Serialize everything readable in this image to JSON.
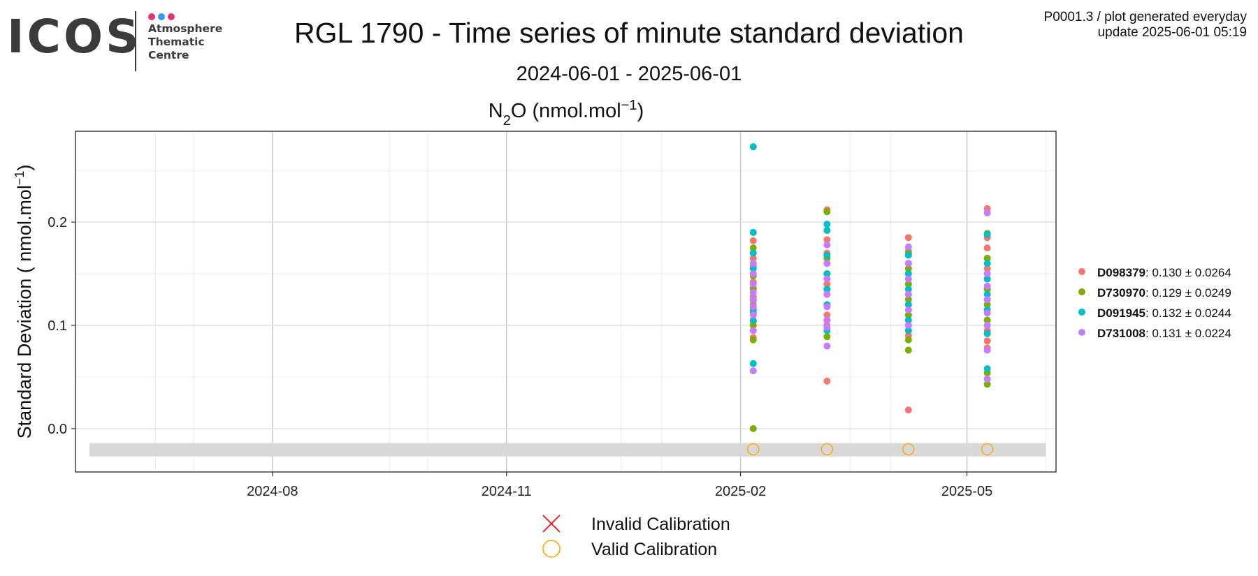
{
  "logo": {
    "text": "ICOS",
    "subtitle_lines": [
      "Atmosphere",
      "Thematic",
      "Centre"
    ],
    "dot_colors": [
      "#e8336f",
      "#2d9be5",
      "#e8336f"
    ]
  },
  "title": "RGL 1790 - Time series of minute standard deviation",
  "subtitle": "2024-06-01 - 2025-06-01",
  "header_right": {
    "line1": "P0001.3 / plot generated everyday",
    "line2": "update  2025-06-01 05:19"
  },
  "chart_data": {
    "type": "scatter",
    "title": "N2O (nmol.mol-1)",
    "ylabel": "Standard Deviation ( nmol.mol-1)",
    "x_axis": {
      "type": "date",
      "range": [
        "2024-06-01",
        "2025-06-01"
      ],
      "ticks": [
        "2024-08",
        "2024-11",
        "2025-02",
        "2025-05"
      ]
    },
    "ylim": [
      -0.042,
      0.288
    ],
    "yticks": [
      0.0,
      0.1,
      0.2
    ],
    "grid": true,
    "legend_position": "right",
    "calibration_band": [
      -0.027,
      -0.014
    ],
    "series": [
      {
        "name": "D098379",
        "stat": "0.130 ± 0.0264",
        "color": "#F8766D",
        "points": [
          [
            "2025-02-06",
            0.182
          ],
          [
            "2025-02-06",
            0.165
          ],
          [
            "2025-02-06",
            0.158
          ],
          [
            "2025-02-06",
            0.15
          ],
          [
            "2025-02-06",
            0.142
          ],
          [
            "2025-02-06",
            0.135
          ],
          [
            "2025-02-06",
            0.128
          ],
          [
            "2025-02-06",
            0.12
          ],
          [
            "2025-02-06",
            0.112
          ],
          [
            "2025-02-06",
            0.104
          ],
          [
            "2025-02-06",
            0.095
          ],
          [
            "2025-02-06",
            0.088
          ],
          [
            "2025-03-07",
            0.212
          ],
          [
            "2025-03-07",
            0.183
          ],
          [
            "2025-03-07",
            0.17
          ],
          [
            "2025-03-07",
            0.16
          ],
          [
            "2025-03-07",
            0.15
          ],
          [
            "2025-03-07",
            0.14
          ],
          [
            "2025-03-07",
            0.13
          ],
          [
            "2025-03-07",
            0.12
          ],
          [
            "2025-03-07",
            0.11
          ],
          [
            "2025-03-07",
            0.1
          ],
          [
            "2025-03-07",
            0.046
          ],
          [
            "2025-04-08",
            0.185
          ],
          [
            "2025-04-08",
            0.172
          ],
          [
            "2025-04-08",
            0.16
          ],
          [
            "2025-04-08",
            0.15
          ],
          [
            "2025-04-08",
            0.14
          ],
          [
            "2025-04-08",
            0.13
          ],
          [
            "2025-04-08",
            0.12
          ],
          [
            "2025-04-08",
            0.11
          ],
          [
            "2025-04-08",
            0.1
          ],
          [
            "2025-04-08",
            0.09
          ],
          [
            "2025-04-08",
            0.018
          ],
          [
            "2025-05-09",
            0.213
          ],
          [
            "2025-05-09",
            0.185
          ],
          [
            "2025-05-09",
            0.175
          ],
          [
            "2025-05-09",
            0.165
          ],
          [
            "2025-05-09",
            0.155
          ],
          [
            "2025-05-09",
            0.145
          ],
          [
            "2025-05-09",
            0.135
          ],
          [
            "2025-05-09",
            0.125
          ],
          [
            "2025-05-09",
            0.115
          ],
          [
            "2025-05-09",
            0.105
          ],
          [
            "2025-05-09",
            0.095
          ],
          [
            "2025-05-09",
            0.085
          ],
          [
            "2025-05-09",
            0.078
          ]
        ]
      },
      {
        "name": "D730970",
        "stat": "0.129 ± 0.0249",
        "color": "#7CAE00",
        "points": [
          [
            "2025-02-06",
            0.175
          ],
          [
            "2025-02-06",
            0.16
          ],
          [
            "2025-02-06",
            0.148
          ],
          [
            "2025-02-06",
            0.136
          ],
          [
            "2025-02-06",
            0.124
          ],
          [
            "2025-02-06",
            0.112
          ],
          [
            "2025-02-06",
            0.1
          ],
          [
            "2025-02-06",
            0.086
          ],
          [
            "2025-02-06",
            0.0
          ],
          [
            "2025-03-07",
            0.21
          ],
          [
            "2025-03-07",
            0.165
          ],
          [
            "2025-03-07",
            0.15
          ],
          [
            "2025-03-07",
            0.135
          ],
          [
            "2025-03-07",
            0.12
          ],
          [
            "2025-03-07",
            0.105
          ],
          [
            "2025-03-07",
            0.089
          ],
          [
            "2025-04-08",
            0.17
          ],
          [
            "2025-04-08",
            0.155
          ],
          [
            "2025-04-08",
            0.14
          ],
          [
            "2025-04-08",
            0.125
          ],
          [
            "2025-04-08",
            0.11
          ],
          [
            "2025-04-08",
            0.095
          ],
          [
            "2025-04-08",
            0.086
          ],
          [
            "2025-04-08",
            0.076
          ],
          [
            "2025-05-09",
            0.189
          ],
          [
            "2025-05-09",
            0.165
          ],
          [
            "2025-05-09",
            0.15
          ],
          [
            "2025-05-09",
            0.135
          ],
          [
            "2025-05-09",
            0.12
          ],
          [
            "2025-05-09",
            0.105
          ],
          [
            "2025-05-09",
            0.054
          ],
          [
            "2025-05-09",
            0.043
          ]
        ]
      },
      {
        "name": "D091945",
        "stat": "0.132 ± 0.0244",
        "color": "#00BFC4",
        "points": [
          [
            "2025-02-06",
            0.273
          ],
          [
            "2025-02-06",
            0.19
          ],
          [
            "2025-02-06",
            0.17
          ],
          [
            "2025-02-06",
            0.155
          ],
          [
            "2025-02-06",
            0.14
          ],
          [
            "2025-02-06",
            0.125
          ],
          [
            "2025-02-06",
            0.115
          ],
          [
            "2025-02-06",
            0.105
          ],
          [
            "2025-02-06",
            0.063
          ],
          [
            "2025-03-07",
            0.198
          ],
          [
            "2025-03-07",
            0.192
          ],
          [
            "2025-03-07",
            0.168
          ],
          [
            "2025-03-07",
            0.15
          ],
          [
            "2025-03-07",
            0.135
          ],
          [
            "2025-03-07",
            0.12
          ],
          [
            "2025-03-07",
            0.105
          ],
          [
            "2025-03-07",
            0.095
          ],
          [
            "2025-04-08",
            0.168
          ],
          [
            "2025-04-08",
            0.15
          ],
          [
            "2025-04-08",
            0.135
          ],
          [
            "2025-04-08",
            0.12
          ],
          [
            "2025-04-08",
            0.105
          ],
          [
            "2025-04-08",
            0.095
          ],
          [
            "2025-05-09",
            0.188
          ],
          [
            "2025-05-09",
            0.16
          ],
          [
            "2025-05-09",
            0.145
          ],
          [
            "2025-05-09",
            0.13
          ],
          [
            "2025-05-09",
            0.115
          ],
          [
            "2025-05-09",
            0.1
          ],
          [
            "2025-05-09",
            0.092
          ],
          [
            "2025-05-09",
            0.058
          ]
        ]
      },
      {
        "name": "D731008",
        "stat": "0.131 ± 0.0224",
        "color": "#C77CFF",
        "points": [
          [
            "2025-02-06",
            0.16
          ],
          [
            "2025-02-06",
            0.15
          ],
          [
            "2025-02-06",
            0.14
          ],
          [
            "2025-02-06",
            0.132
          ],
          [
            "2025-02-06",
            0.125
          ],
          [
            "2025-02-06",
            0.118
          ],
          [
            "2025-02-06",
            0.11
          ],
          [
            "2025-02-06",
            0.095
          ],
          [
            "2025-02-06",
            0.056
          ],
          [
            "2025-03-07",
            0.178
          ],
          [
            "2025-03-07",
            0.16
          ],
          [
            "2025-03-07",
            0.145
          ],
          [
            "2025-03-07",
            0.13
          ],
          [
            "2025-03-07",
            0.118
          ],
          [
            "2025-03-07",
            0.105
          ],
          [
            "2025-03-07",
            0.098
          ],
          [
            "2025-03-07",
            0.08
          ],
          [
            "2025-04-08",
            0.176
          ],
          [
            "2025-04-08",
            0.16
          ],
          [
            "2025-04-08",
            0.145
          ],
          [
            "2025-04-08",
            0.13
          ],
          [
            "2025-04-08",
            0.115
          ],
          [
            "2025-04-08",
            0.1
          ],
          [
            "2025-05-09",
            0.209
          ],
          [
            "2025-05-09",
            0.15
          ],
          [
            "2025-05-09",
            0.138
          ],
          [
            "2025-05-09",
            0.125
          ],
          [
            "2025-05-09",
            0.112
          ],
          [
            "2025-05-09",
            0.1
          ],
          [
            "2025-05-09",
            0.076
          ],
          [
            "2025-05-09",
            0.048
          ]
        ]
      }
    ],
    "calibrations": {
      "valid": {
        "color": "#FFA500",
        "dates": [
          "2025-02-06",
          "2025-03-07",
          "2025-04-08",
          "2025-05-09"
        ],
        "value": -0.02
      },
      "invalid": {
        "color": "#FF0000",
        "dates": []
      }
    },
    "bottom_legend": [
      {
        "symbol": "cross",
        "label": "Invalid Calibration",
        "color": "#FF0000"
      },
      {
        "symbol": "circle",
        "label": "Valid Calibration",
        "color": "#FFA500"
      }
    ]
  }
}
